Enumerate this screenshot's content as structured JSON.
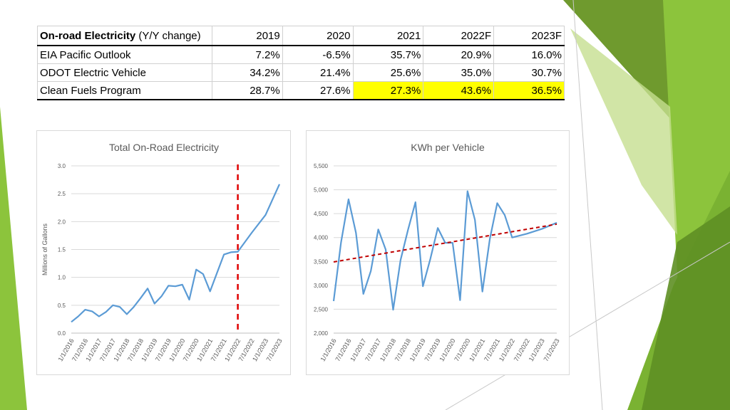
{
  "table": {
    "header_bold": "On-road Electricity",
    "header_rest": " (Y/Y change)",
    "years": [
      "2019",
      "2020",
      "2021",
      "2022F",
      "2023F"
    ],
    "rows": [
      {
        "label": "EIA Pacific Outlook",
        "values": [
          "7.2%",
          "-6.5%",
          "35.7%",
          "20.9%",
          "16.0%"
        ]
      },
      {
        "label": "ODOT Electric Vehicle",
        "values": [
          "34.2%",
          "21.4%",
          "25.6%",
          "35.0%",
          "30.7%"
        ]
      },
      {
        "label": "Clean Fuels Program",
        "values": [
          "28.7%",
          "27.6%",
          "27.3%",
          "43.6%",
          "36.5%"
        ]
      }
    ],
    "highlight_color": "#ffff00"
  },
  "chart_data": [
    {
      "type": "line",
      "title": "Total On-Road Electricity",
      "xlabel": "",
      "ylabel": "Millions of Gallons",
      "ylim": [
        0,
        3.0
      ],
      "yticks": [
        "0.0",
        "0.5",
        "1.0",
        "1.5",
        "2.0",
        "2.5",
        "3.0"
      ],
      "x_tick_labels": [
        "1/1/2016",
        "7/1/2016",
        "1/1/2017",
        "7/1/2017",
        "1/1/2018",
        "7/1/2018",
        "1/1/2019",
        "7/1/2019",
        "1/1/2020",
        "7/1/2020",
        "1/1/2021",
        "7/1/2021",
        "1/1/2022",
        "7/1/2022",
        "1/1/2023",
        "7/1/2023"
      ],
      "x_range_years": [
        2016.0,
        2023.5
      ],
      "grid": true,
      "line_color": "#5b9bd5",
      "marker_line": {
        "x": 2022.0,
        "color": "#e00000",
        "style": "dashed"
      },
      "series": [
        {
          "x": [
            2016.0,
            2016.25,
            2016.5,
            2016.75,
            2017.0,
            2017.25,
            2017.5,
            2017.75,
            2018.0,
            2018.25,
            2018.5,
            2018.75,
            2019.0,
            2019.25,
            2019.5,
            2019.75,
            2020.0,
            2020.25,
            2020.5,
            2020.75,
            2021.0,
            2021.25,
            2021.5,
            2021.75,
            2022.0,
            2022.5,
            2023.0,
            2023.5
          ],
          "values": [
            0.2,
            0.3,
            0.42,
            0.39,
            0.3,
            0.38,
            0.5,
            0.47,
            0.34,
            0.47,
            0.63,
            0.8,
            0.53,
            0.66,
            0.85,
            0.84,
            0.87,
            0.6,
            1.14,
            1.06,
            0.75,
            1.08,
            1.41,
            1.45,
            1.46,
            1.8,
            2.12,
            2.67
          ]
        }
      ]
    },
    {
      "type": "line",
      "title": "KWh per Vehicle",
      "xlabel": "",
      "ylabel": "",
      "ylim": [
        2000,
        5500
      ],
      "yticks": [
        "2,000",
        "2,500",
        "3,000",
        "3,500",
        "4,000",
        "4,500",
        "5,000",
        "5,500"
      ],
      "x_tick_labels": [
        "1/1/2016",
        "7/1/2016",
        "1/1/2017",
        "7/1/2017",
        "1/1/2018",
        "7/1/2018",
        "1/1/2019",
        "7/1/2019",
        "1/1/2020",
        "7/1/2020",
        "1/1/2021",
        "7/1/2021",
        "1/1/2022",
        "7/1/2022",
        "1/1/2023",
        "7/1/2023"
      ],
      "x_range_years": [
        2016.0,
        2023.5
      ],
      "grid": true,
      "line_color": "#5b9bd5",
      "trendline": {
        "x": [
          2016.0,
          2023.5
        ],
        "values": [
          3490,
          4280
        ],
        "color": "#c00000",
        "style": "dashed"
      },
      "series": [
        {
          "x": [
            2016.0,
            2016.25,
            2016.5,
            2016.75,
            2017.0,
            2017.25,
            2017.5,
            2017.75,
            2018.0,
            2018.25,
            2018.5,
            2018.75,
            2019.0,
            2019.25,
            2019.5,
            2019.75,
            2020.0,
            2020.25,
            2020.5,
            2020.75,
            2021.0,
            2021.25,
            2021.5,
            2021.75,
            2022.0,
            2022.5,
            2023.0,
            2023.5
          ],
          "values": [
            2670,
            3900,
            4800,
            4100,
            2820,
            3300,
            4170,
            3750,
            2490,
            3530,
            4160,
            4740,
            2980,
            3550,
            4200,
            3890,
            3890,
            2690,
            4970,
            4370,
            2870,
            3970,
            4720,
            4470,
            4000,
            4080,
            4180,
            4310
          ]
        }
      ]
    }
  ]
}
